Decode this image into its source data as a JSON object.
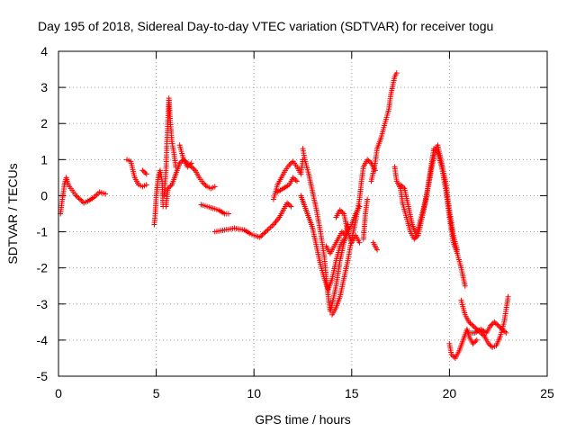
{
  "chart_data": {
    "type": "scatter",
    "title": "Day 195 of 2018, Sidereal Day-to-day VTEC variation (SDTVAR) for receiver togu",
    "xlabel": "GPS time / hours",
    "ylabel": "SDTVAR / TECUs",
    "xlim": [
      0,
      25
    ],
    "ylim": [
      -5,
      4
    ],
    "xticks": [
      0,
      5,
      10,
      15,
      20,
      25
    ],
    "yticks": [
      -5,
      -4,
      -3,
      -2,
      -1,
      0,
      1,
      2,
      3,
      4
    ],
    "grid": true,
    "marker": "plus",
    "color": "#ff0000",
    "series": [
      {
        "name": "SDTVAR",
        "segments": [
          [
            [
              0.1,
              -0.5
            ],
            [
              0.2,
              -0.1
            ],
            [
              0.3,
              0.3
            ],
            [
              0.4,
              0.5
            ],
            [
              0.5,
              0.3
            ],
            [
              0.7,
              0.15
            ],
            [
              0.9,
              0.0
            ],
            [
              1.1,
              -0.1
            ],
            [
              1.3,
              -0.2
            ],
            [
              1.5,
              -0.15
            ],
            [
              1.8,
              -0.05
            ],
            [
              2.1,
              0.1
            ],
            [
              2.4,
              0.05
            ]
          ],
          [
            [
              3.5,
              1.0
            ],
            [
              3.7,
              0.95
            ],
            [
              3.9,
              0.5
            ],
            [
              4.1,
              0.3
            ],
            [
              4.3,
              0.25
            ],
            [
              4.5,
              0.3
            ]
          ],
          [
            [
              4.3,
              0.7
            ],
            [
              4.5,
              0.6
            ]
          ],
          [
            [
              4.9,
              -0.8
            ],
            [
              4.95,
              -0.5
            ],
            [
              5.0,
              0.0
            ],
            [
              5.1,
              0.5
            ],
            [
              5.2,
              0.7
            ],
            [
              5.3,
              0.4
            ],
            [
              5.35,
              -0.3
            ]
          ],
          [
            [
              5.4,
              0.0
            ],
            [
              5.5,
              0.7
            ],
            [
              5.55,
              1.5
            ],
            [
              5.6,
              2.1
            ],
            [
              5.65,
              2.7
            ],
            [
              5.7,
              2.2
            ],
            [
              5.8,
              1.5
            ],
            [
              5.9,
              1.2
            ],
            [
              6.0,
              0.8
            ]
          ],
          [
            [
              5.5,
              -0.3
            ],
            [
              5.6,
              0.2
            ],
            [
              5.8,
              0.3
            ],
            [
              6.0,
              0.6
            ],
            [
              6.2,
              0.9
            ],
            [
              6.4,
              1.0
            ],
            [
              6.6,
              0.9
            ],
            [
              6.8,
              0.8
            ],
            [
              7.0,
              0.7
            ],
            [
              7.2,
              0.5
            ],
            [
              7.4,
              0.35
            ],
            [
              7.6,
              0.25
            ],
            [
              7.8,
              0.2
            ],
            [
              8.0,
              0.25
            ]
          ],
          [
            [
              6.2,
              1.4
            ],
            [
              6.4,
              1.0
            ],
            [
              6.6,
              0.8
            ],
            [
              6.8,
              0.9
            ]
          ],
          [
            [
              7.3,
              -0.25
            ],
            [
              7.6,
              -0.3
            ],
            [
              7.9,
              -0.35
            ],
            [
              8.2,
              -0.4
            ],
            [
              8.5,
              -0.5
            ],
            [
              8.7,
              -0.5
            ]
          ],
          [
            [
              8.0,
              -1.0
            ],
            [
              8.5,
              -0.95
            ],
            [
              9.0,
              -0.9
            ],
            [
              9.5,
              -0.95
            ],
            [
              9.8,
              -1.05
            ],
            [
              10.0,
              -1.1
            ],
            [
              10.3,
              -1.15
            ],
            [
              10.5,
              -1.05
            ],
            [
              10.7,
              -0.95
            ],
            [
              11.0,
              -0.8
            ],
            [
              11.3,
              -0.6
            ],
            [
              11.5,
              -0.4
            ],
            [
              11.7,
              -0.2
            ],
            [
              11.9,
              -0.3
            ]
          ],
          [
            [
              11.0,
              -0.1
            ],
            [
              11.2,
              0.3
            ],
            [
              11.4,
              0.5
            ],
            [
              11.6,
              0.7
            ],
            [
              11.8,
              0.85
            ],
            [
              12.0,
              0.95
            ],
            [
              12.2,
              0.8
            ],
            [
              12.4,
              0.6
            ],
            [
              12.5,
              1.0
            ]
          ],
          [
            [
              11.2,
              0.1
            ],
            [
              11.5,
              0.2
            ],
            [
              11.8,
              0.3
            ],
            [
              12.0,
              0.5
            ],
            [
              12.2,
              0.4
            ]
          ],
          [
            [
              12.5,
              1.3
            ],
            [
              12.6,
              1.0
            ],
            [
              12.8,
              0.6
            ],
            [
              13.0,
              0.1
            ],
            [
              13.2,
              -0.4
            ],
            [
              13.4,
              -1.0
            ],
            [
              13.6,
              -1.7
            ],
            [
              13.7,
              -2.3
            ],
            [
              13.8,
              -2.8
            ],
            [
              13.9,
              -3.2
            ],
            [
              14.0,
              -3.0
            ],
            [
              14.2,
              -2.5
            ],
            [
              14.4,
              -1.8
            ],
            [
              14.6,
              -1.3
            ],
            [
              14.8,
              -1.0
            ],
            [
              15.0,
              -0.8
            ],
            [
              15.2,
              -0.5
            ],
            [
              15.4,
              -0.3
            ]
          ],
          [
            [
              12.4,
              0.0
            ],
            [
              12.6,
              -0.3
            ],
            [
              12.8,
              -0.6
            ],
            [
              13.0,
              -0.9
            ],
            [
              13.2,
              -1.4
            ],
            [
              13.4,
              -1.9
            ],
            [
              13.6,
              -2.3
            ],
            [
              13.8,
              -2.6
            ],
            [
              14.0,
              -2.3
            ],
            [
              14.2,
              -1.8
            ],
            [
              14.4,
              -1.4
            ],
            [
              14.6,
              -1.2
            ]
          ],
          [
            [
              13.7,
              -1.4
            ],
            [
              13.9,
              -1.6
            ],
            [
              14.1,
              -1.4
            ],
            [
              14.3,
              -1.2
            ],
            [
              14.5,
              -1.0
            ],
            [
              14.7,
              -1.1
            ],
            [
              14.8,
              -0.8
            ]
          ],
          [
            [
              14.2,
              -0.6
            ],
            [
              14.4,
              -0.4
            ],
            [
              14.6,
              -0.5
            ],
            [
              14.8,
              -1.0
            ],
            [
              15.0,
              -1.3
            ],
            [
              15.2,
              -1.1
            ],
            [
              15.4,
              -1.3
            ]
          ],
          [
            [
              14.0,
              -3.3
            ],
            [
              14.2,
              -3.1
            ],
            [
              14.4,
              -2.8
            ],
            [
              14.6,
              -2.3
            ],
            [
              14.8,
              -1.8
            ],
            [
              15.0,
              -1.2
            ],
            [
              15.2,
              -0.7
            ],
            [
              15.4,
              -0.1
            ],
            [
              15.5,
              0.4
            ],
            [
              15.6,
              0.8
            ],
            [
              15.8,
              1.0
            ],
            [
              16.0,
              0.9
            ],
            [
              16.2,
              0.7
            ]
          ],
          [
            [
              16.1,
              -1.3
            ],
            [
              16.3,
              -1.5
            ]
          ],
          [
            [
              15.6,
              -1.2
            ],
            [
              15.7,
              -0.5
            ],
            [
              15.8,
              -0.1
            ]
          ],
          [
            [
              16.0,
              0.4
            ],
            [
              16.2,
              0.9
            ],
            [
              16.3,
              1.3
            ],
            [
              16.5,
              1.6
            ],
            [
              16.7,
              2.0
            ],
            [
              16.9,
              2.4
            ],
            [
              17.0,
              2.8
            ],
            [
              17.2,
              3.3
            ],
            [
              17.3,
              3.4
            ]
          ],
          [
            [
              17.2,
              0.8
            ],
            [
              17.3,
              0.4
            ],
            [
              17.5,
              0.2
            ],
            [
              17.6,
              -0.2
            ],
            [
              17.8,
              -0.6
            ],
            [
              18.0,
              -1.0
            ],
            [
              18.2,
              -1.2
            ],
            [
              18.4,
              -1.1
            ],
            [
              18.6,
              -0.6
            ],
            [
              18.8,
              -0.1
            ],
            [
              19.0,
              0.6
            ],
            [
              19.2,
              1.3
            ],
            [
              19.4,
              1.2
            ],
            [
              19.6,
              0.8
            ],
            [
              19.8,
              0.2
            ],
            [
              20.0,
              -0.6
            ],
            [
              20.2,
              -1.3
            ],
            [
              20.4,
              -1.6
            ],
            [
              20.6,
              -2.0
            ],
            [
              20.8,
              -2.5
            ]
          ],
          [
            [
              17.5,
              0.3
            ],
            [
              17.7,
              0.2
            ],
            [
              17.9,
              -0.3
            ],
            [
              18.1,
              -0.8
            ],
            [
              18.3,
              -1.1
            ],
            [
              18.5,
              -0.7
            ],
            [
              18.7,
              -0.3
            ],
            [
              18.9,
              0.2
            ],
            [
              19.1,
              0.8
            ],
            [
              19.3,
              1.3
            ],
            [
              19.4,
              1.4
            ],
            [
              19.6,
              0.9
            ],
            [
              19.8,
              0.4
            ],
            [
              20.0,
              -0.4
            ],
            [
              20.2,
              -1.1
            ],
            [
              20.4,
              -1.5
            ]
          ],
          [
            [
              20.0,
              -4.1
            ],
            [
              20.1,
              -4.4
            ],
            [
              20.3,
              -4.5
            ],
            [
              20.5,
              -4.3
            ],
            [
              20.7,
              -4.0
            ],
            [
              20.9,
              -3.7
            ],
            [
              21.0,
              -3.9
            ],
            [
              21.2,
              -4.1
            ],
            [
              21.4,
              -4.0
            ]
          ],
          [
            [
              20.6,
              -2.9
            ],
            [
              20.8,
              -3.3
            ],
            [
              21.0,
              -3.5
            ],
            [
              21.2,
              -3.6
            ],
            [
              21.4,
              -3.7
            ],
            [
              21.6,
              -3.8
            ],
            [
              21.8,
              -3.9
            ],
            [
              22.0,
              -4.1
            ],
            [
              22.2,
              -4.2
            ],
            [
              22.4,
              -4.15
            ],
            [
              22.6,
              -3.9
            ],
            [
              22.8,
              -3.5
            ],
            [
              23.0,
              -2.8
            ]
          ],
          [
            [
              21.0,
              -3.8
            ],
            [
              21.3,
              -3.8
            ],
            [
              21.6,
              -3.7
            ],
            [
              21.9,
              -3.8
            ],
            [
              22.1,
              -3.6
            ],
            [
              22.3,
              -3.5
            ],
            [
              22.5,
              -3.6
            ],
            [
              22.7,
              -3.7
            ],
            [
              22.9,
              -3.8
            ]
          ]
        ]
      }
    ]
  }
}
